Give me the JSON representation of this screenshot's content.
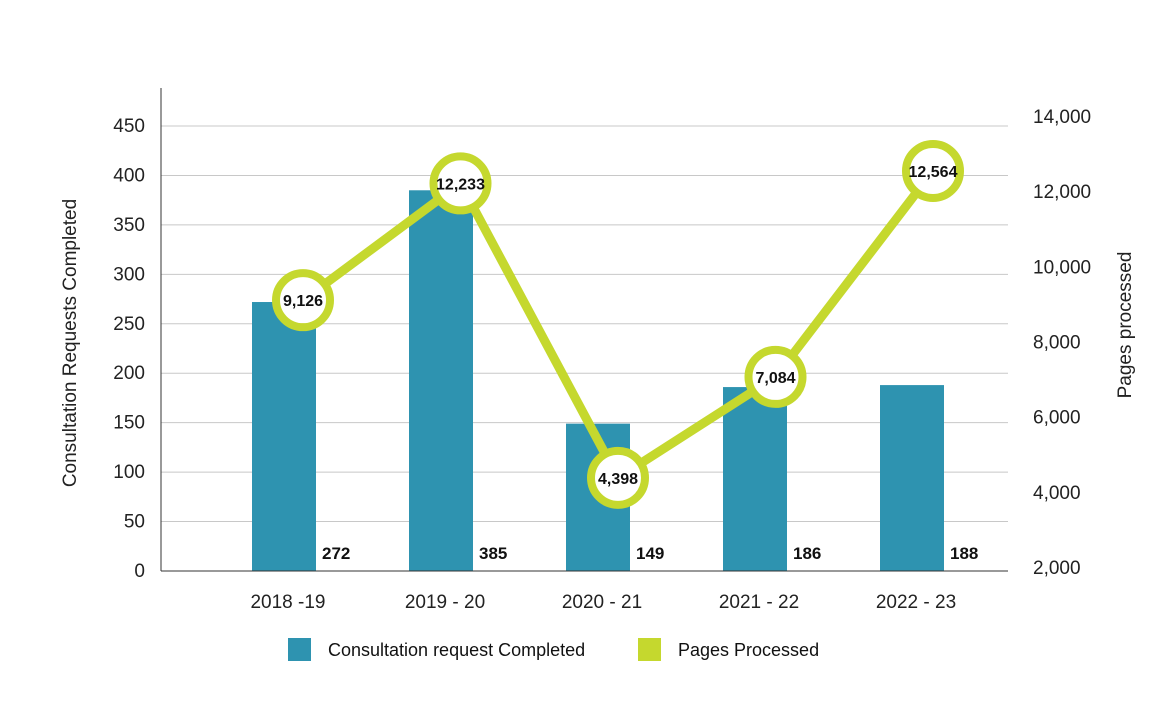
{
  "chart_data": {
    "type": "bar+line",
    "categories": [
      "2018 -19",
      "2019 - 20",
      "2020 - 21",
      "2021 - 22",
      "2022 - 23"
    ],
    "series": [
      {
        "name": "Consultation request Completed",
        "type": "bar",
        "axis": "left",
        "color": "#2E93B0",
        "values": [
          272,
          385,
          149,
          186,
          188
        ],
        "labels": [
          "272",
          "385",
          "149",
          "186",
          "188"
        ]
      },
      {
        "name": "Pages Processed",
        "type": "line",
        "axis": "right",
        "color": "#C5D82E",
        "values": [
          9126,
          12233,
          4398,
          7084,
          12564
        ],
        "labels": [
          "9,126",
          "12,233",
          "4,398",
          "7,084",
          "12,564"
        ]
      }
    ],
    "ylabel": "Consultation Requests Completed",
    "y2label": "Pages processed",
    "ylim": [
      0,
      450
    ],
    "yticks": [
      "0",
      "50",
      "100",
      "150",
      "200",
      "250",
      "300",
      "350",
      "400",
      "450"
    ],
    "y2lim": [
      2000,
      14000
    ],
    "y2ticks": [
      "2,000",
      "4,000",
      "6,000",
      "8,000",
      "10,000",
      "12,000",
      "14,000"
    ],
    "grid": true,
    "legend_position": "bottom"
  }
}
